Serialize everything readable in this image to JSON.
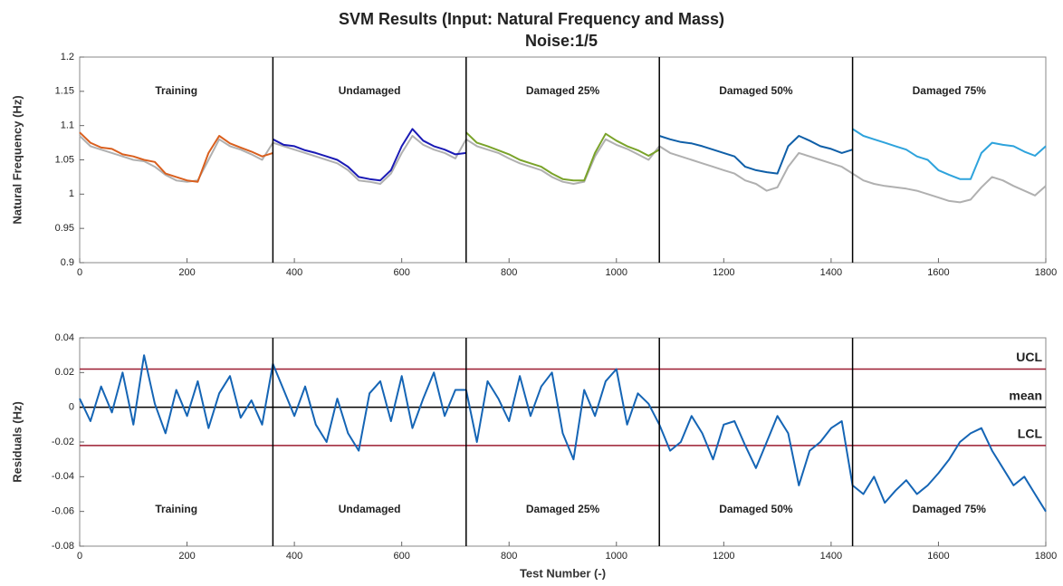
{
  "chart_data": [
    {
      "type": "line",
      "title": "SVM Results (Input: Natural Frequency and Mass)",
      "subtitle": "Noise:1/5",
      "ylabel": "Natural Frequency (Hz)",
      "xlim": [
        0,
        1800
      ],
      "xticks": [
        0,
        200,
        400,
        600,
        800,
        1000,
        1200,
        1400,
        1600,
        1800
      ],
      "ylim": [
        0.9,
        1.2
      ],
      "yticks": [
        0.9,
        0.95,
        1,
        1.05,
        1.1,
        1.15,
        1.2
      ],
      "boundaries": [
        360,
        720,
        1080,
        1440
      ],
      "regions": [
        "Training",
        "Undamaged",
        "Damaged 25%",
        "Damaged 50%",
        "Damaged 75%"
      ],
      "series": [
        {
          "color": "#b0b0b0",
          "x": [
            0,
            20,
            40,
            60,
            80,
            100,
            120,
            140,
            160,
            180,
            200,
            220,
            240,
            260,
            280,
            300,
            320,
            340,
            360,
            380,
            400,
            420,
            440,
            460,
            480,
            500,
            520,
            540,
            560,
            580,
            600,
            620,
            640,
            660,
            680,
            700,
            720,
            740,
            760,
            780,
            800,
            820,
            840,
            860,
            880,
            900,
            920,
            940,
            960,
            980,
            1000,
            1020,
            1040,
            1060,
            1080,
            1100,
            1120,
            1140,
            1160,
            1180,
            1200,
            1220,
            1240,
            1260,
            1280,
            1300,
            1320,
            1340,
            1360,
            1380,
            1400,
            1420,
            1440,
            1460,
            1480,
            1500,
            1520,
            1540,
            1560,
            1580,
            1600,
            1620,
            1640,
            1660,
            1680,
            1700,
            1720,
            1740,
            1760,
            1780,
            1800
          ],
          "values": [
            1.085,
            1.07,
            1.065,
            1.06,
            1.055,
            1.05,
            1.048,
            1.04,
            1.028,
            1.02,
            1.018,
            1.02,
            1.05,
            1.08,
            1.07,
            1.065,
            1.058,
            1.05,
            1.075,
            1.07,
            1.065,
            1.06,
            1.055,
            1.05,
            1.045,
            1.035,
            1.02,
            1.018,
            1.015,
            1.03,
            1.06,
            1.085,
            1.072,
            1.065,
            1.06,
            1.052,
            1.08,
            1.07,
            1.065,
            1.06,
            1.052,
            1.045,
            1.04,
            1.035,
            1.025,
            1.018,
            1.015,
            1.018,
            1.055,
            1.08,
            1.072,
            1.066,
            1.058,
            1.05,
            1.07,
            1.06,
            1.055,
            1.05,
            1.045,
            1.04,
            1.035,
            1.03,
            1.02,
            1.015,
            1.005,
            1.01,
            1.04,
            1.06,
            1.055,
            1.05,
            1.045,
            1.04,
            1.03,
            1.02,
            1.015,
            1.012,
            1.01,
            1.008,
            1.005,
            1.0,
            0.995,
            0.99,
            0.988,
            0.992,
            1.01,
            1.025,
            1.02,
            1.012,
            1.005,
            0.998,
            1.012
          ]
        },
        {
          "color": "#d95f1e",
          "x": [
            0,
            20,
            40,
            60,
            80,
            100,
            120,
            140,
            160,
            180,
            200,
            220,
            240,
            260,
            280,
            300,
            320,
            340,
            360
          ],
          "values": [
            1.09,
            1.075,
            1.068,
            1.066,
            1.058,
            1.055,
            1.05,
            1.047,
            1.03,
            1.025,
            1.02,
            1.018,
            1.06,
            1.085,
            1.074,
            1.068,
            1.062,
            1.055,
            1.06
          ]
        },
        {
          "color": "#1a1ab5",
          "x": [
            360,
            380,
            400,
            420,
            440,
            460,
            480,
            500,
            520,
            540,
            560,
            580,
            600,
            620,
            640,
            660,
            680,
            700,
            720
          ],
          "values": [
            1.08,
            1.072,
            1.07,
            1.064,
            1.06,
            1.055,
            1.05,
            1.04,
            1.025,
            1.022,
            1.02,
            1.035,
            1.07,
            1.095,
            1.078,
            1.07,
            1.065,
            1.058,
            1.06
          ]
        },
        {
          "color": "#7aa32a",
          "x": [
            720,
            740,
            760,
            780,
            800,
            820,
            840,
            860,
            880,
            900,
            920,
            940,
            960,
            980,
            1000,
            1020,
            1040,
            1060,
            1080
          ],
          "values": [
            1.09,
            1.075,
            1.07,
            1.064,
            1.058,
            1.05,
            1.045,
            1.04,
            1.03,
            1.022,
            1.02,
            1.02,
            1.06,
            1.088,
            1.078,
            1.07,
            1.064,
            1.056,
            1.065
          ]
        },
        {
          "color": "#0f5fa8",
          "x": [
            1080,
            1100,
            1120,
            1140,
            1160,
            1180,
            1200,
            1220,
            1240,
            1260,
            1280,
            1300,
            1320,
            1340,
            1360,
            1380,
            1400,
            1420,
            1440
          ],
          "values": [
            1.085,
            1.08,
            1.076,
            1.074,
            1.07,
            1.065,
            1.06,
            1.055,
            1.04,
            1.035,
            1.032,
            1.03,
            1.07,
            1.085,
            1.078,
            1.07,
            1.066,
            1.06,
            1.065
          ]
        },
        {
          "color": "#2ea3dc",
          "x": [
            1440,
            1460,
            1480,
            1500,
            1520,
            1540,
            1560,
            1580,
            1600,
            1620,
            1640,
            1660,
            1680,
            1700,
            1720,
            1740,
            1760,
            1780,
            1800
          ],
          "values": [
            1.095,
            1.085,
            1.08,
            1.075,
            1.07,
            1.065,
            1.055,
            1.05,
            1.035,
            1.028,
            1.022,
            1.022,
            1.06,
            1.075,
            1.072,
            1.07,
            1.062,
            1.056,
            1.07
          ]
        }
      ]
    },
    {
      "type": "line",
      "ylabel": "Residuals (Hz)",
      "xlabel": "Test Number (-)",
      "xlim": [
        0,
        1800
      ],
      "xticks": [
        0,
        200,
        400,
        600,
        800,
        1000,
        1200,
        1400,
        1600,
        1800
      ],
      "ylim": [
        -0.08,
        0.04
      ],
      "yticks": [
        -0.08,
        -0.06,
        -0.04,
        -0.02,
        0,
        0.02,
        0.04
      ],
      "boundaries": [
        360,
        720,
        1080,
        1440
      ],
      "regions": [
        "Training",
        "Undamaged",
        "Damaged 25%",
        "Damaged 50%",
        "Damaged 75%"
      ],
      "control_lines": [
        {
          "label": "UCL",
          "value": 0.022,
          "color": "#9b1c31"
        },
        {
          "label": "mean",
          "value": 0,
          "color": "#000000"
        },
        {
          "label": "LCL",
          "value": -0.022,
          "color": "#9b1c31"
        }
      ],
      "series": [
        {
          "color": "#1565b5",
          "x": [
            0,
            20,
            40,
            60,
            80,
            100,
            120,
            140,
            160,
            180,
            200,
            220,
            240,
            260,
            280,
            300,
            320,
            340,
            360,
            380,
            400,
            420,
            440,
            460,
            480,
            500,
            520,
            540,
            560,
            580,
            600,
            620,
            640,
            660,
            680,
            700,
            720,
            740,
            760,
            780,
            800,
            820,
            840,
            860,
            880,
            900,
            920,
            940,
            960,
            980,
            1000,
            1020,
            1040,
            1060,
            1080,
            1100,
            1120,
            1140,
            1160,
            1180,
            1200,
            1220,
            1240,
            1260,
            1280,
            1300,
            1320,
            1340,
            1360,
            1380,
            1400,
            1420,
            1440,
            1460,
            1480,
            1500,
            1520,
            1540,
            1560,
            1580,
            1600,
            1620,
            1640,
            1660,
            1680,
            1700,
            1720,
            1740,
            1760,
            1780,
            1800
          ],
          "values": [
            0.005,
            -0.008,
            0.012,
            -0.003,
            0.02,
            -0.01,
            0.03,
            0.002,
            -0.015,
            0.01,
            -0.005,
            0.015,
            -0.012,
            0.008,
            0.018,
            -0.006,
            0.004,
            -0.01,
            0.025,
            0.01,
            -0.005,
            0.012,
            -0.01,
            -0.02,
            0.005,
            -0.015,
            -0.025,
            0.008,
            0.015,
            -0.008,
            0.018,
            -0.012,
            0.005,
            0.02,
            -0.005,
            0.01,
            0.01,
            -0.02,
            0.015,
            0.005,
            -0.008,
            0.018,
            -0.005,
            0.012,
            0.02,
            -0.015,
            -0.03,
            0.01,
            -0.005,
            0.015,
            0.022,
            -0.01,
            0.008,
            0.002,
            -0.01,
            -0.025,
            -0.02,
            -0.005,
            -0.015,
            -0.03,
            -0.01,
            -0.008,
            -0.022,
            -0.035,
            -0.02,
            -0.005,
            -0.015,
            -0.045,
            -0.025,
            -0.02,
            -0.012,
            -0.008,
            -0.045,
            -0.05,
            -0.04,
            -0.055,
            -0.048,
            -0.042,
            -0.05,
            -0.045,
            -0.038,
            -0.03,
            -0.02,
            -0.015,
            -0.012,
            -0.025,
            -0.035,
            -0.045,
            -0.04,
            -0.05,
            -0.06
          ]
        }
      ]
    }
  ]
}
